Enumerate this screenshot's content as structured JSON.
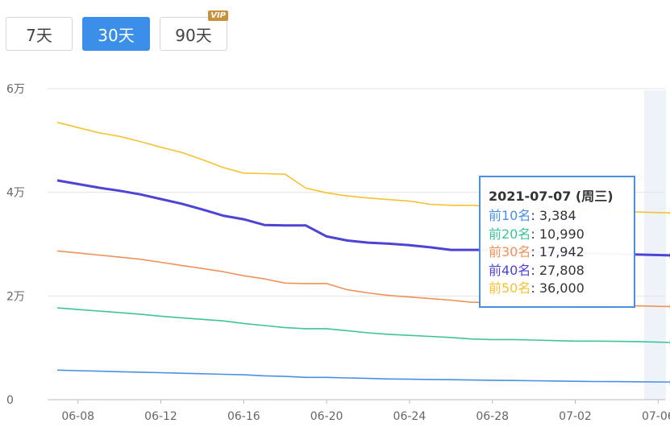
{
  "range_buttons": [
    {
      "label": "7天",
      "active": false
    },
    {
      "label": "30天",
      "active": true
    },
    {
      "label": "90天",
      "active": false,
      "badge": "VIP"
    }
  ],
  "chart_data": {
    "type": "line",
    "y_ticks": [
      "0",
      "2万",
      "4万",
      "6万"
    ],
    "ylim": [
      0,
      60000
    ],
    "x_ticks": [
      "06-08",
      "06-12",
      "06-16",
      "06-20",
      "06-24",
      "06-28",
      "07-02",
      "07-06"
    ],
    "x_dates": [
      "2021-06-07",
      "2021-06-08",
      "2021-06-09",
      "2021-06-10",
      "2021-06-11",
      "2021-06-12",
      "2021-06-13",
      "2021-06-14",
      "2021-06-15",
      "2021-06-16",
      "2021-06-17",
      "2021-06-18",
      "2021-06-19",
      "2021-06-20",
      "2021-06-21",
      "2021-06-22",
      "2021-06-23",
      "2021-06-24",
      "2021-06-25",
      "2021-06-26",
      "2021-06-27",
      "2021-06-28",
      "2021-06-29",
      "2021-06-30",
      "2021-07-01",
      "2021-07-02",
      "2021-07-03",
      "2021-07-04",
      "2021-07-05",
      "2021-07-06",
      "2021-07-07"
    ],
    "series": [
      {
        "name": "前10名",
        "color": "#4a90e2",
        "values": [
          5700,
          5600,
          5500,
          5400,
          5300,
          5200,
          5100,
          5000,
          4900,
          4800,
          4600,
          4500,
          4300,
          4300,
          4200,
          4100,
          4000,
          3950,
          3900,
          3850,
          3800,
          3750,
          3700,
          3650,
          3600,
          3550,
          3500,
          3480,
          3450,
          3420,
          3384
        ]
      },
      {
        "name": "前20名",
        "color": "#3ec49a",
        "values": [
          17700,
          17400,
          17100,
          16800,
          16500,
          16100,
          15800,
          15500,
          15200,
          14700,
          14300,
          13900,
          13700,
          13700,
          13300,
          12900,
          12600,
          12400,
          12200,
          12000,
          11700,
          11600,
          11600,
          11500,
          11400,
          11300,
          11300,
          11250,
          11200,
          11100,
          10990
        ]
      },
      {
        "name": "前30名",
        "color": "#f0915a",
        "values": [
          28700,
          28300,
          27900,
          27500,
          27100,
          26500,
          25900,
          25300,
          24700,
          23900,
          23300,
          22500,
          22400,
          22400,
          21200,
          20600,
          20100,
          19800,
          19500,
          19200,
          18800,
          18700,
          18600,
          18500,
          18400,
          18300,
          18250,
          18150,
          18100,
          18000,
          17942
        ]
      },
      {
        "name": "前40名",
        "color": "#4b44d4",
        "values": [
          42300,
          41600,
          40900,
          40300,
          39600,
          38700,
          37800,
          36700,
          35500,
          34800,
          33700,
          33600,
          33600,
          31500,
          30700,
          30300,
          30100,
          29800,
          29400,
          28900,
          28900,
          28900,
          28700,
          28500,
          28400,
          28300,
          28200,
          28100,
          28000,
          27900,
          27808
        ]
      },
      {
        "name": "前50名",
        "color": "#f5c230",
        "values": [
          53500,
          52500,
          51500,
          50800,
          49800,
          48700,
          47700,
          46300,
          44800,
          43700,
          43600,
          43500,
          40800,
          39900,
          39300,
          38900,
          38600,
          38300,
          37700,
          37500,
          37500,
          37300,
          37100,
          37000,
          36900,
          36700,
          36500,
          36400,
          36200,
          36100,
          36000
        ]
      }
    ],
    "tooltip": {
      "date": "2021-07-07 (周三)",
      "rows": [
        {
          "label": "前10名",
          "value": "3,384",
          "color": "#4a90e2"
        },
        {
          "label": "前20名",
          "value": "10,990",
          "color": "#3ec49a"
        },
        {
          "label": "前30名",
          "value": "17,942",
          "color": "#f0915a"
        },
        {
          "label": "前40名",
          "value": "27,808",
          "color": "#4b44d4"
        },
        {
          "label": "前50名",
          "value": "36,000",
          "color": "#f5c230"
        }
      ]
    }
  }
}
